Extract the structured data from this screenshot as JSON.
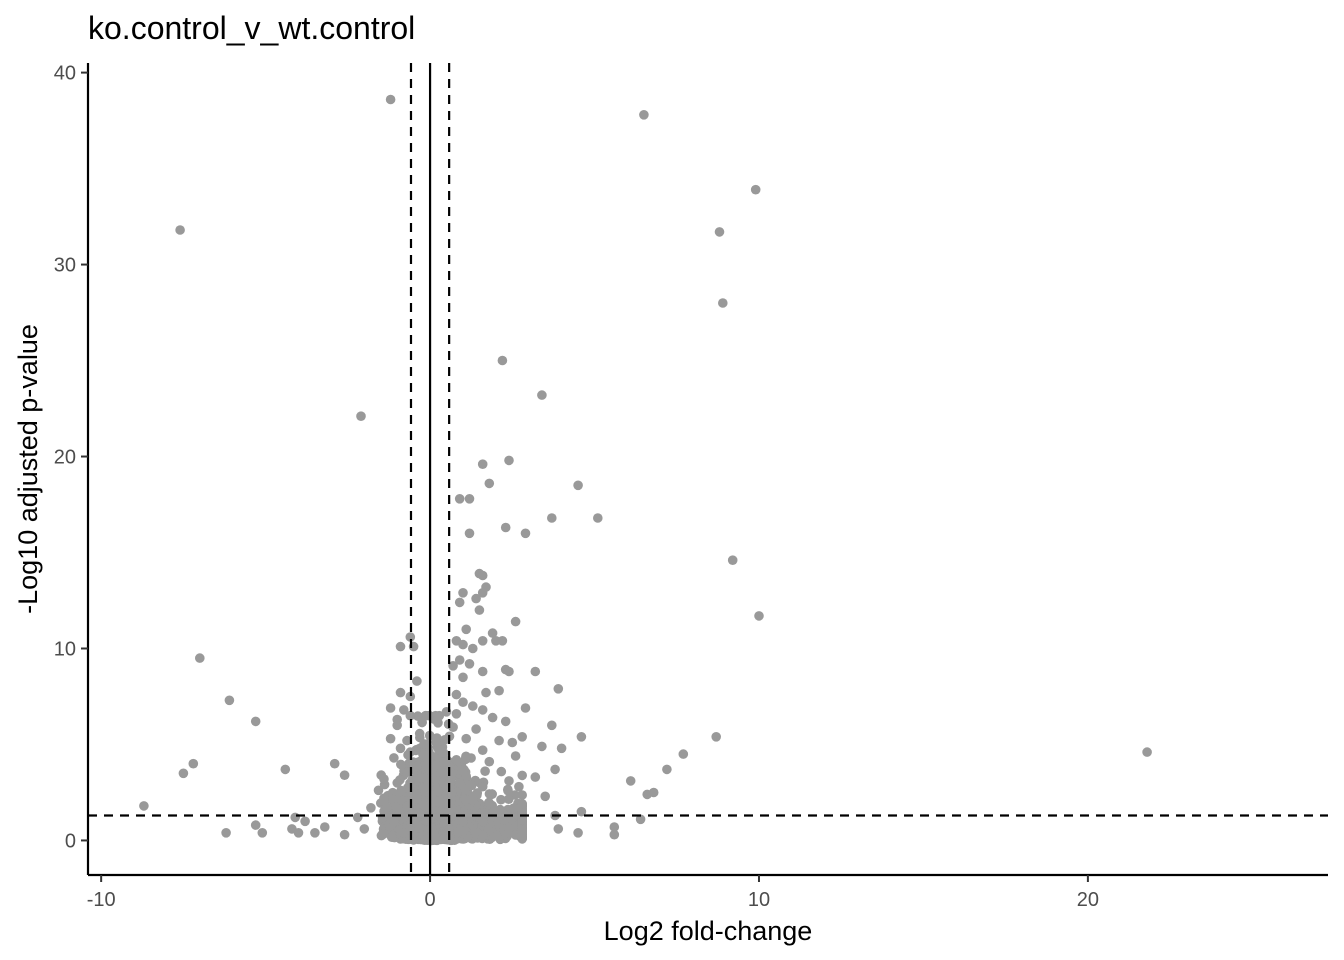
{
  "chart_data": {
    "type": "scatter",
    "title": "ko.control_v_wt.control",
    "xlabel": "Log2 fold-change",
    "ylabel": "-Log10 adjusted p-value",
    "xlim": [
      -10.4,
      27.3
    ],
    "ylim": [
      -1.8,
      40.5
    ],
    "x_ticks": [
      -10,
      0,
      10,
      20
    ],
    "x_tick_labels": [
      "-10",
      "0",
      "10",
      "20"
    ],
    "y_ticks": [
      0,
      10,
      20,
      30,
      40
    ],
    "y_tick_labels": [
      "0",
      "10",
      "20",
      "30",
      "40"
    ],
    "grid": false,
    "point_color": "#999999",
    "threshold_lines": {
      "vertical_solid": [
        0
      ],
      "vertical_dashed": [
        -0.58,
        0.58
      ],
      "horizontal_dashed": [
        1.3
      ]
    },
    "points": [
      [
        -1.2,
        38.6
      ],
      [
        6.5,
        37.8
      ],
      [
        9.9,
        33.9
      ],
      [
        -7.6,
        31.8
      ],
      [
        8.8,
        31.7
      ],
      [
        8.9,
        28.0
      ],
      [
        2.2,
        25.0
      ],
      [
        3.4,
        23.2
      ],
      [
        -2.1,
        22.1
      ],
      [
        2.4,
        19.8
      ],
      [
        1.6,
        19.6
      ],
      [
        1.8,
        18.6
      ],
      [
        4.5,
        18.5
      ],
      [
        0.9,
        17.8
      ],
      [
        1.2,
        17.8
      ],
      [
        3.7,
        16.8
      ],
      [
        5.1,
        16.8
      ],
      [
        2.3,
        16.3
      ],
      [
        1.2,
        16.0
      ],
      [
        2.9,
        16.0
      ],
      [
        9.2,
        14.6
      ],
      [
        1.5,
        13.9
      ],
      [
        1.6,
        13.8
      ],
      [
        1.7,
        13.2
      ],
      [
        1.6,
        12.9
      ],
      [
        1.0,
        12.9
      ],
      [
        1.4,
        12.6
      ],
      [
        0.9,
        12.4
      ],
      [
        1.5,
        12.0
      ],
      [
        10.0,
        11.7
      ],
      [
        2.6,
        11.4
      ],
      [
        1.1,
        11.0
      ],
      [
        1.9,
        10.8
      ],
      [
        -0.6,
        10.6
      ],
      [
        0.8,
        10.4
      ],
      [
        1.6,
        10.4
      ],
      [
        2.0,
        10.4
      ],
      [
        2.2,
        10.4
      ],
      [
        -0.9,
        10.1
      ],
      [
        -0.5,
        10.1
      ],
      [
        1.0,
        10.2
      ],
      [
        1.3,
        10.0
      ],
      [
        -7.0,
        9.5
      ],
      [
        0.9,
        9.4
      ],
      [
        0.7,
        9.1
      ],
      [
        1.2,
        9.2
      ],
      [
        2.3,
        8.9
      ],
      [
        3.2,
        8.8
      ],
      [
        1.6,
        8.8
      ],
      [
        2.4,
        8.8
      ],
      [
        -0.4,
        8.3
      ],
      [
        1.0,
        8.5
      ],
      [
        3.9,
        7.9
      ],
      [
        0.8,
        7.6
      ],
      [
        1.7,
        7.7
      ],
      [
        2.1,
        7.8
      ],
      [
        -0.9,
        7.7
      ],
      [
        -0.6,
        7.5
      ],
      [
        -6.1,
        7.3
      ],
      [
        1.0,
        7.2
      ],
      [
        1.3,
        7.0
      ],
      [
        2.9,
        6.9
      ],
      [
        -1.2,
        6.9
      ],
      [
        -0.8,
        6.8
      ],
      [
        0.5,
        6.7
      ],
      [
        1.6,
        6.8
      ],
      [
        -0.6,
        6.5
      ],
      [
        -1.0,
        6.3
      ],
      [
        0.8,
        6.6
      ],
      [
        1.9,
        6.4
      ],
      [
        2.3,
        6.2
      ],
      [
        -5.3,
        6.2
      ],
      [
        3.7,
        6.0
      ],
      [
        -1.0,
        6.0
      ],
      [
        0.7,
        5.9
      ],
      [
        1.4,
        5.8
      ],
      [
        4.6,
        5.4
      ],
      [
        8.7,
        5.4
      ],
      [
        2.8,
        5.4
      ],
      [
        -1.2,
        5.3
      ],
      [
        -0.7,
        5.2
      ],
      [
        1.1,
        5.3
      ],
      [
        2.1,
        5.2
      ],
      [
        2.5,
        5.1
      ],
      [
        3.4,
        4.9
      ],
      [
        -0.9,
        4.8
      ],
      [
        4.0,
        4.8
      ],
      [
        1.6,
        4.7
      ],
      [
        -0.6,
        4.6
      ],
      [
        21.8,
        4.6
      ],
      [
        7.7,
        4.5
      ],
      [
        2.6,
        4.4
      ],
      [
        -1.1,
        4.3
      ],
      [
        -7.2,
        4.0
      ],
      [
        -2.9,
        4.0
      ],
      [
        0.8,
        4.2
      ],
      [
        1.8,
        4.1
      ],
      [
        7.2,
        3.7
      ],
      [
        -4.4,
        3.7
      ],
      [
        3.8,
        3.7
      ],
      [
        -7.5,
        3.5
      ],
      [
        -2.6,
        3.4
      ],
      [
        3.2,
        3.3
      ],
      [
        -1.4,
        3.2
      ],
      [
        2.4,
        3.1
      ],
      [
        6.1,
        3.1
      ],
      [
        -1.0,
        3.0
      ],
      [
        0.9,
        3.0
      ],
      [
        2.7,
        2.8
      ],
      [
        1.6,
        2.8
      ],
      [
        6.8,
        2.5
      ],
      [
        6.6,
        2.4
      ],
      [
        3.5,
        2.3
      ],
      [
        -1.4,
        2.2
      ],
      [
        1.3,
        2.1
      ],
      [
        -8.7,
        1.8
      ],
      [
        -1.8,
        1.7
      ],
      [
        4.6,
        1.5
      ],
      [
        -4.1,
        1.2
      ],
      [
        -0.4,
        1.2
      ],
      [
        -2.2,
        1.2
      ],
      [
        3.8,
        1.3
      ],
      [
        6.4,
        1.1
      ],
      [
        -1.1,
        1.0
      ],
      [
        -3.8,
        1.0
      ],
      [
        1.0,
        1.0
      ],
      [
        -5.3,
        0.8
      ],
      [
        5.6,
        0.7
      ],
      [
        -4.2,
        0.6
      ],
      [
        -3.2,
        0.7
      ],
      [
        -2.0,
        0.6
      ],
      [
        2.4,
        0.6
      ],
      [
        3.9,
        0.6
      ],
      [
        -5.1,
        0.4
      ],
      [
        -6.2,
        0.4
      ],
      [
        -4.0,
        0.4
      ],
      [
        5.6,
        0.3
      ],
      [
        -3.5,
        0.4
      ],
      [
        4.5,
        0.4
      ],
      [
        -2.6,
        0.3
      ],
      [
        1.6,
        0.3
      ]
    ],
    "dense_cloud": {
      "approximate_count": 3000,
      "x_range": [
        -1.8,
        2.8
      ],
      "y_range": [
        0,
        6.5
      ]
    }
  }
}
